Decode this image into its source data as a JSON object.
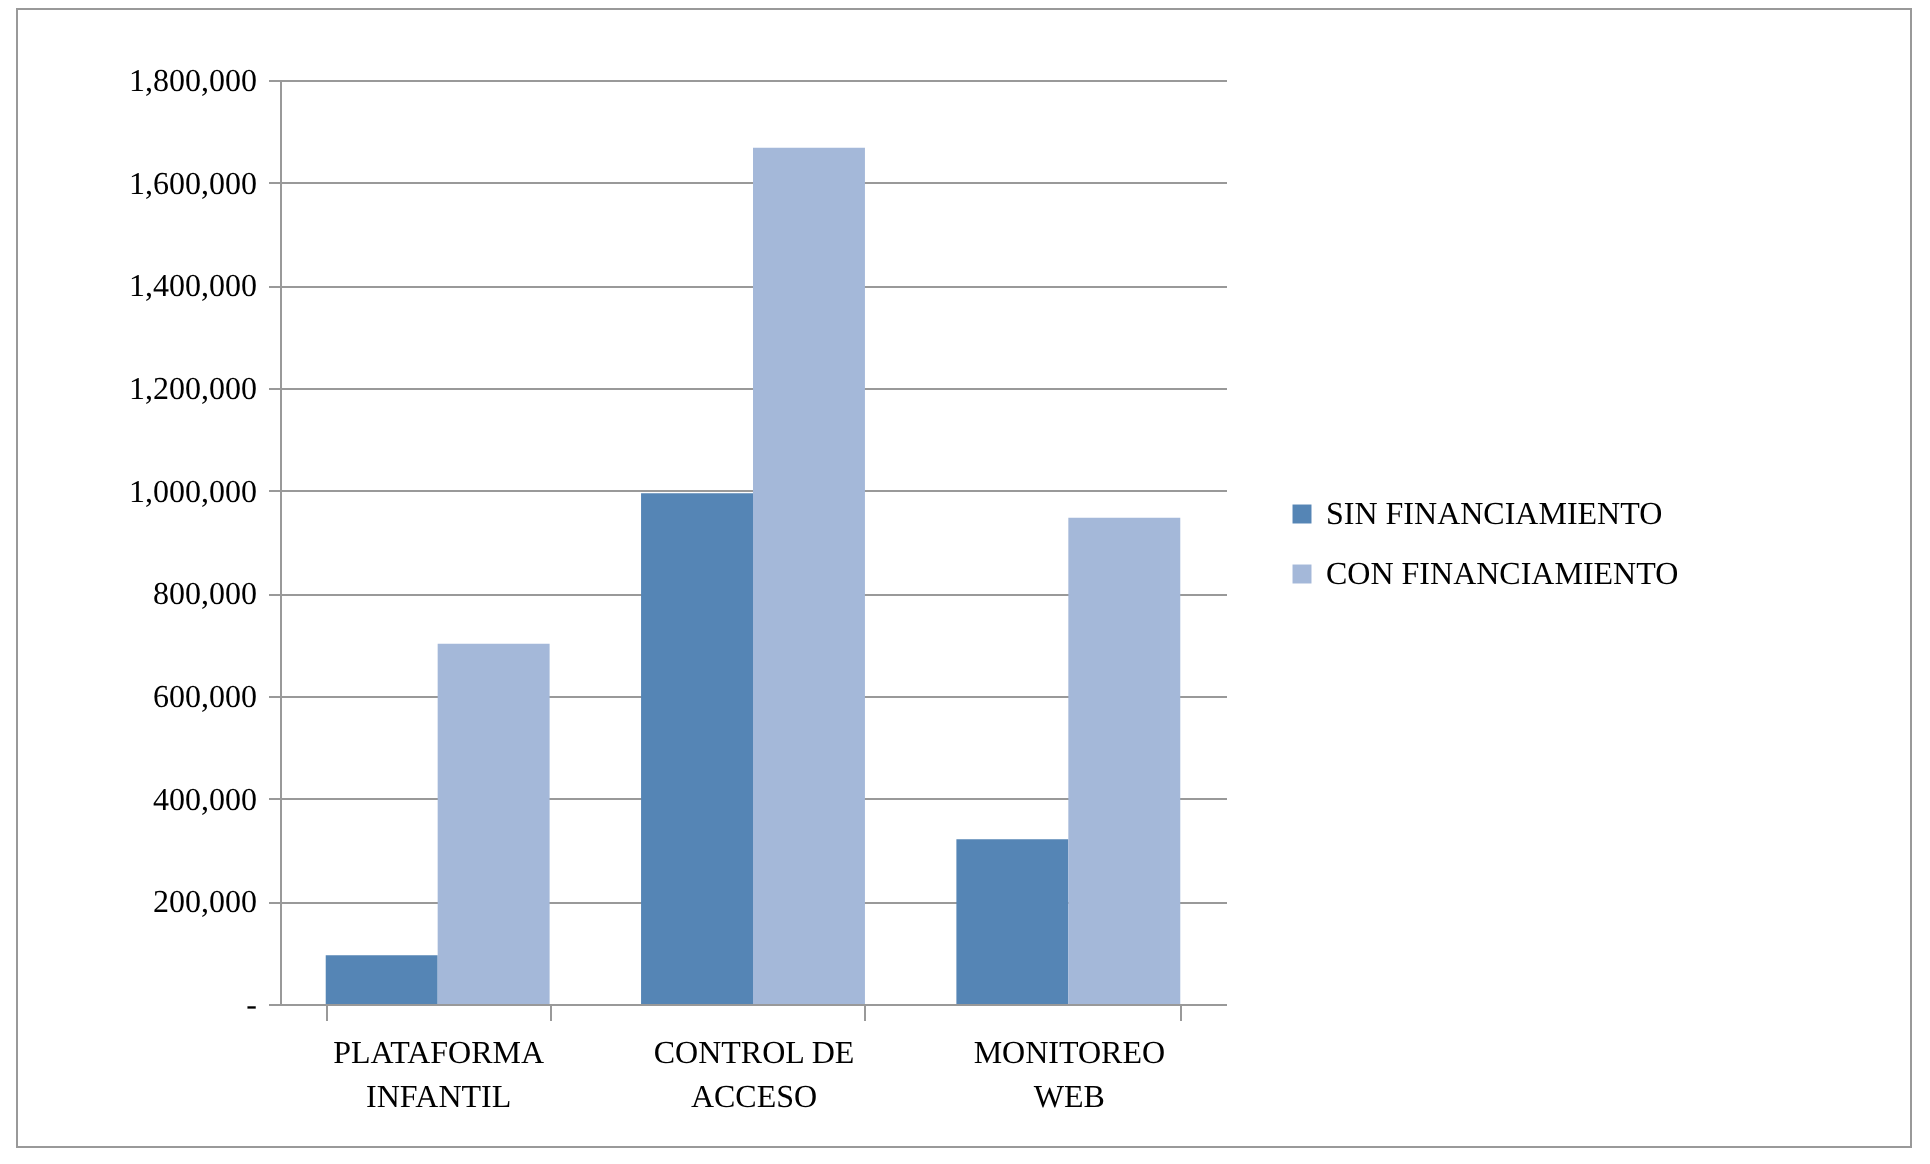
{
  "chart_data": {
    "type": "bar",
    "categories": [
      "PLATAFORMA INFANTIL",
      "CONTROL DE ACCESO",
      "MONITOREO WEB"
    ],
    "series": [
      {
        "name": "SIN FINANCIAMIENTO",
        "color": "#5585b5",
        "values": [
          95000,
          995000,
          321000
        ]
      },
      {
        "name": "CON FINANCIAMIENTO",
        "color": "#a4b8d9",
        "values": [
          702000,
          1668000,
          947000
        ]
      }
    ],
    "ylim": [
      0,
      1800000
    ],
    "yticks": [
      {
        "value": 0,
        "label": "-"
      },
      {
        "value": 200000,
        "label": "200,000"
      },
      {
        "value": 400000,
        "label": "400,000"
      },
      {
        "value": 600000,
        "label": "600,000"
      },
      {
        "value": 800000,
        "label": "800,000"
      },
      {
        "value": 1000000,
        "label": "1,000,000"
      },
      {
        "value": 1200000,
        "label": "1,200,000"
      },
      {
        "value": 1400000,
        "label": "1,400,000"
      },
      {
        "value": 1600000,
        "label": "1,600,000"
      },
      {
        "value": 1800000,
        "label": "1,800,000"
      }
    ],
    "grid": "y",
    "legend": "right"
  }
}
